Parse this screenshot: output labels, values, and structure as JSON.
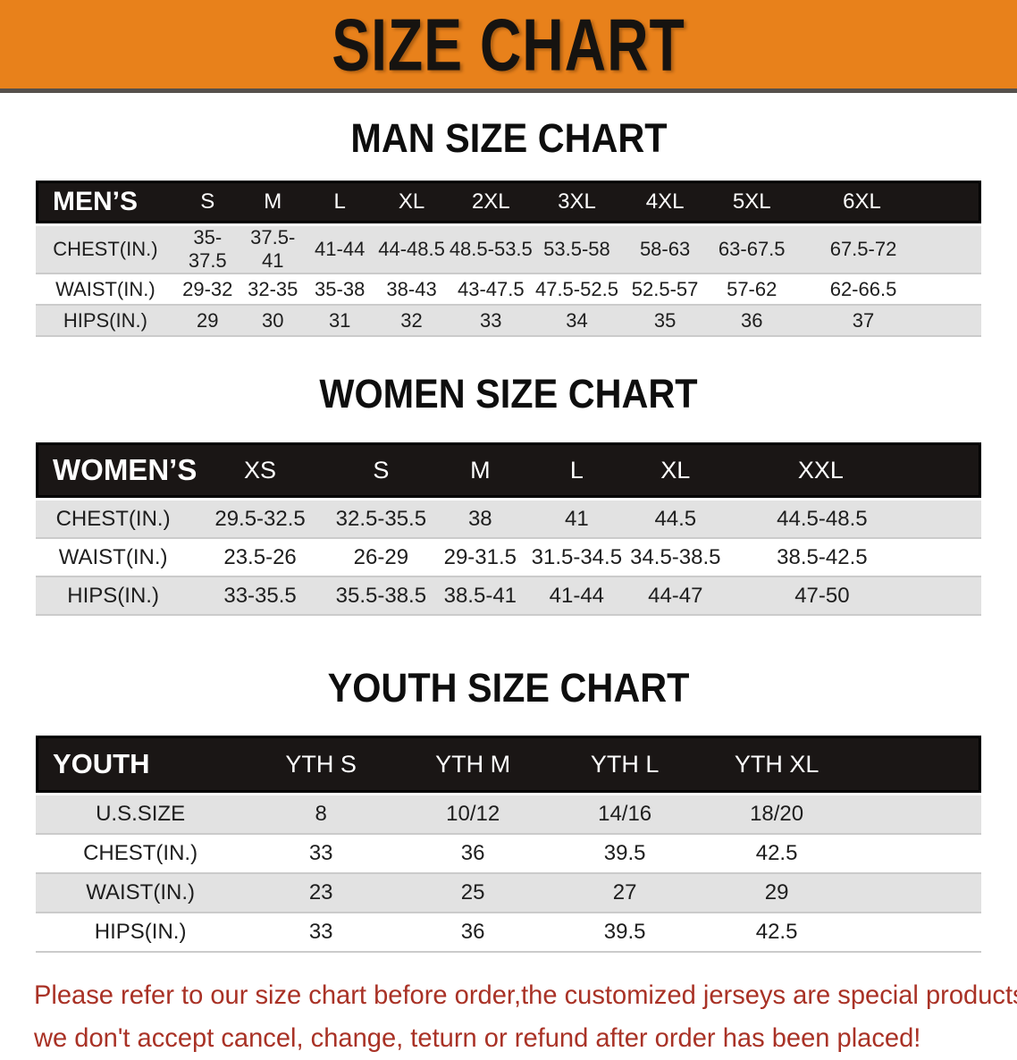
{
  "banner": {
    "title": "SIZE CHART",
    "bg_color": "#e8811b"
  },
  "sections": [
    {
      "title": "MAN SIZE CHART",
      "header_label": "MEN’S",
      "columns": [
        "S",
        "M",
        "L",
        "XL",
        "2XL",
        "3XL",
        "4XL",
        "5XL",
        "6XL"
      ],
      "rows": [
        {
          "label": "CHEST(IN.)",
          "values": [
            "35-37.5",
            "37.5-41",
            "41-44",
            "44-48.5",
            "48.5-53.5",
            "53.5-58",
            "58-63",
            "63-67.5",
            "67.5-72"
          ]
        },
        {
          "label": "WAIST(IN.)",
          "values": [
            "29-32",
            "32-35",
            "35-38",
            "38-43",
            "43-47.5",
            "47.5-52.5",
            "52.5-57",
            "57-62",
            "62-66.5"
          ]
        },
        {
          "label": "HIPS(IN.)",
          "values": [
            "29",
            "30",
            "31",
            "32",
            "33",
            "34",
            "35",
            "36",
            "37"
          ]
        }
      ]
    },
    {
      "title": "WOMEN SIZE CHART",
      "header_label": "WOMEN’S",
      "columns": [
        "XS",
        "S",
        "M",
        "L",
        "XL",
        "XXL"
      ],
      "rows": [
        {
          "label": "CHEST(IN.)",
          "values": [
            "29.5-32.5",
            "32.5-35.5",
            "38",
            "41",
            "44.5",
            "44.5-48.5"
          ]
        },
        {
          "label": "WAIST(IN.)",
          "values": [
            "23.5-26",
            "26-29",
            "29-31.5",
            "31.5-34.5",
            "34.5-38.5",
            "38.5-42.5"
          ]
        },
        {
          "label": "HIPS(IN.)",
          "values": [
            "33-35.5",
            "35.5-38.5",
            "38.5-41",
            "41-44",
            "44-47",
            "47-50"
          ]
        }
      ]
    },
    {
      "title": "YOUTH SIZE CHART",
      "header_label": "YOUTH",
      "columns": [
        "YTH S",
        "YTH M",
        "YTH L",
        "YTH XL"
      ],
      "rows": [
        {
          "label": "U.S.SIZE",
          "values": [
            "8",
            "10/12",
            "14/16",
            "18/20"
          ]
        },
        {
          "label": "CHEST(IN.)",
          "values": [
            "33",
            "36",
            "39.5",
            "42.5"
          ]
        },
        {
          "label": "WAIST(IN.)",
          "values": [
            "23",
            "25",
            "27",
            "29"
          ]
        },
        {
          "label": "HIPS(IN.)",
          "values": [
            "33",
            "36",
            "39.5",
            "42.5"
          ]
        }
      ]
    }
  ],
  "footer": {
    "line1": "Please refer to our size chart before order,the customized jerseys are special products,",
    "line2": "we don't accept cancel, change, teturn or refund after order has been placed!",
    "text_color": "#a93226"
  },
  "chart_data": {
    "type": "table",
    "tables": [
      {
        "name": "MEN'S",
        "columns": [
          "S",
          "M",
          "L",
          "XL",
          "2XL",
          "3XL",
          "4XL",
          "5XL",
          "6XL"
        ],
        "rows": {
          "CHEST(IN.)": [
            "35-37.5",
            "37.5-41",
            "41-44",
            "44-48.5",
            "48.5-53.5",
            "53.5-58",
            "58-63",
            "63-67.5",
            "67.5-72"
          ],
          "WAIST(IN.)": [
            "29-32",
            "32-35",
            "35-38",
            "38-43",
            "43-47.5",
            "47.5-52.5",
            "52.5-57",
            "57-62",
            "62-66.5"
          ],
          "HIPS(IN.)": [
            "29",
            "30",
            "31",
            "32",
            "33",
            "34",
            "35",
            "36",
            "37"
          ]
        }
      },
      {
        "name": "WOMEN'S",
        "columns": [
          "XS",
          "S",
          "M",
          "L",
          "XL",
          "XXL"
        ],
        "rows": {
          "CHEST(IN.)": [
            "29.5-32.5",
            "32.5-35.5",
            "38",
            "41",
            "44.5",
            "44.5-48.5"
          ],
          "WAIST(IN.)": [
            "23.5-26",
            "26-29",
            "29-31.5",
            "31.5-34.5",
            "34.5-38.5",
            "38.5-42.5"
          ],
          "HIPS(IN.)": [
            "33-35.5",
            "35.5-38.5",
            "38.5-41",
            "41-44",
            "44-47",
            "47-50"
          ]
        }
      },
      {
        "name": "YOUTH",
        "columns": [
          "YTH S",
          "YTH M",
          "YTH L",
          "YTH XL"
        ],
        "rows": {
          "U.S.SIZE": [
            "8",
            "10/12",
            "14/16",
            "18/20"
          ],
          "CHEST(IN.)": [
            "33",
            "36",
            "39.5",
            "42.5"
          ],
          "WAIST(IN.)": [
            "23",
            "25",
            "27",
            "29"
          ],
          "HIPS(IN.)": [
            "33",
            "36",
            "39.5",
            "42.5"
          ]
        }
      }
    ]
  }
}
